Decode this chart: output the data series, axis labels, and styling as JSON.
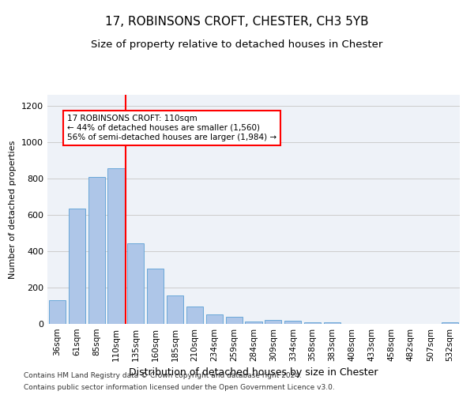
{
  "title1": "17, ROBINSONS CROFT, CHESTER, CH3 5YB",
  "title2": "Size of property relative to detached houses in Chester",
  "xlabel": "Distribution of detached houses by size in Chester",
  "ylabel": "Number of detached properties",
  "footnote1": "Contains HM Land Registry data © Crown copyright and database right 2024.",
  "footnote2": "Contains public sector information licensed under the Open Government Licence v3.0.",
  "annotation_line1": "17 ROBINSONS CROFT: 110sqm",
  "annotation_line2": "← 44% of detached houses are smaller (1,560)",
  "annotation_line3": "56% of semi-detached houses are larger (1,984) →",
  "bar_labels": [
    "36sqm",
    "61sqm",
    "85sqm",
    "110sqm",
    "135sqm",
    "160sqm",
    "185sqm",
    "210sqm",
    "234sqm",
    "259sqm",
    "284sqm",
    "309sqm",
    "334sqm",
    "358sqm",
    "383sqm",
    "408sqm",
    "433sqm",
    "458sqm",
    "482sqm",
    "507sqm",
    "532sqm"
  ],
  "bar_values": [
    130,
    635,
    808,
    858,
    445,
    305,
    158,
    95,
    50,
    38,
    15,
    20,
    18,
    10,
    8,
    0,
    0,
    0,
    0,
    0,
    10
  ],
  "bar_color": "#aec6e8",
  "bar_edge_color": "#5a9fd4",
  "red_line_index": 3,
  "ylim": [
    0,
    1260
  ],
  "yticks": [
    0,
    200,
    400,
    600,
    800,
    1000,
    1200
  ],
  "title1_fontsize": 11,
  "title2_fontsize": 9.5,
  "xlabel_fontsize": 9,
  "ylabel_fontsize": 8,
  "annotation_fontsize": 7.5,
  "footnote_fontsize": 6.5,
  "tick_fontsize": 7.5,
  "ytick_fontsize": 8
}
